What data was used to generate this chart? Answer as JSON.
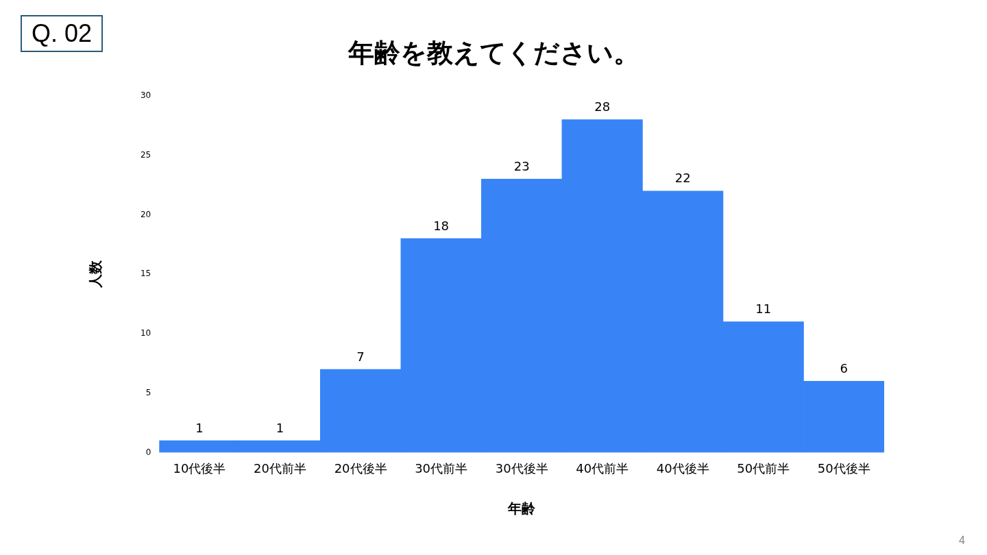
{
  "chart_data": {
    "type": "bar",
    "title": "年齢を教えてください。",
    "xlabel": "年齢",
    "ylabel": "人数",
    "categories": [
      "10代後半",
      "20代前半",
      "20代後半",
      "30代前半",
      "30代後半",
      "40代前半",
      "40代後半",
      "50代前半",
      "50代後半"
    ],
    "values": [
      1,
      1,
      7,
      18,
      23,
      28,
      22,
      11,
      6
    ],
    "color": "#3884f7",
    "ylim": [
      0,
      30
    ],
    "yticks": [
      0,
      5,
      10,
      15,
      20,
      25,
      30
    ],
    "grid": false,
    "legend": false,
    "data_labels": true,
    "annotations": [
      "Q. 02",
      "4"
    ]
  }
}
